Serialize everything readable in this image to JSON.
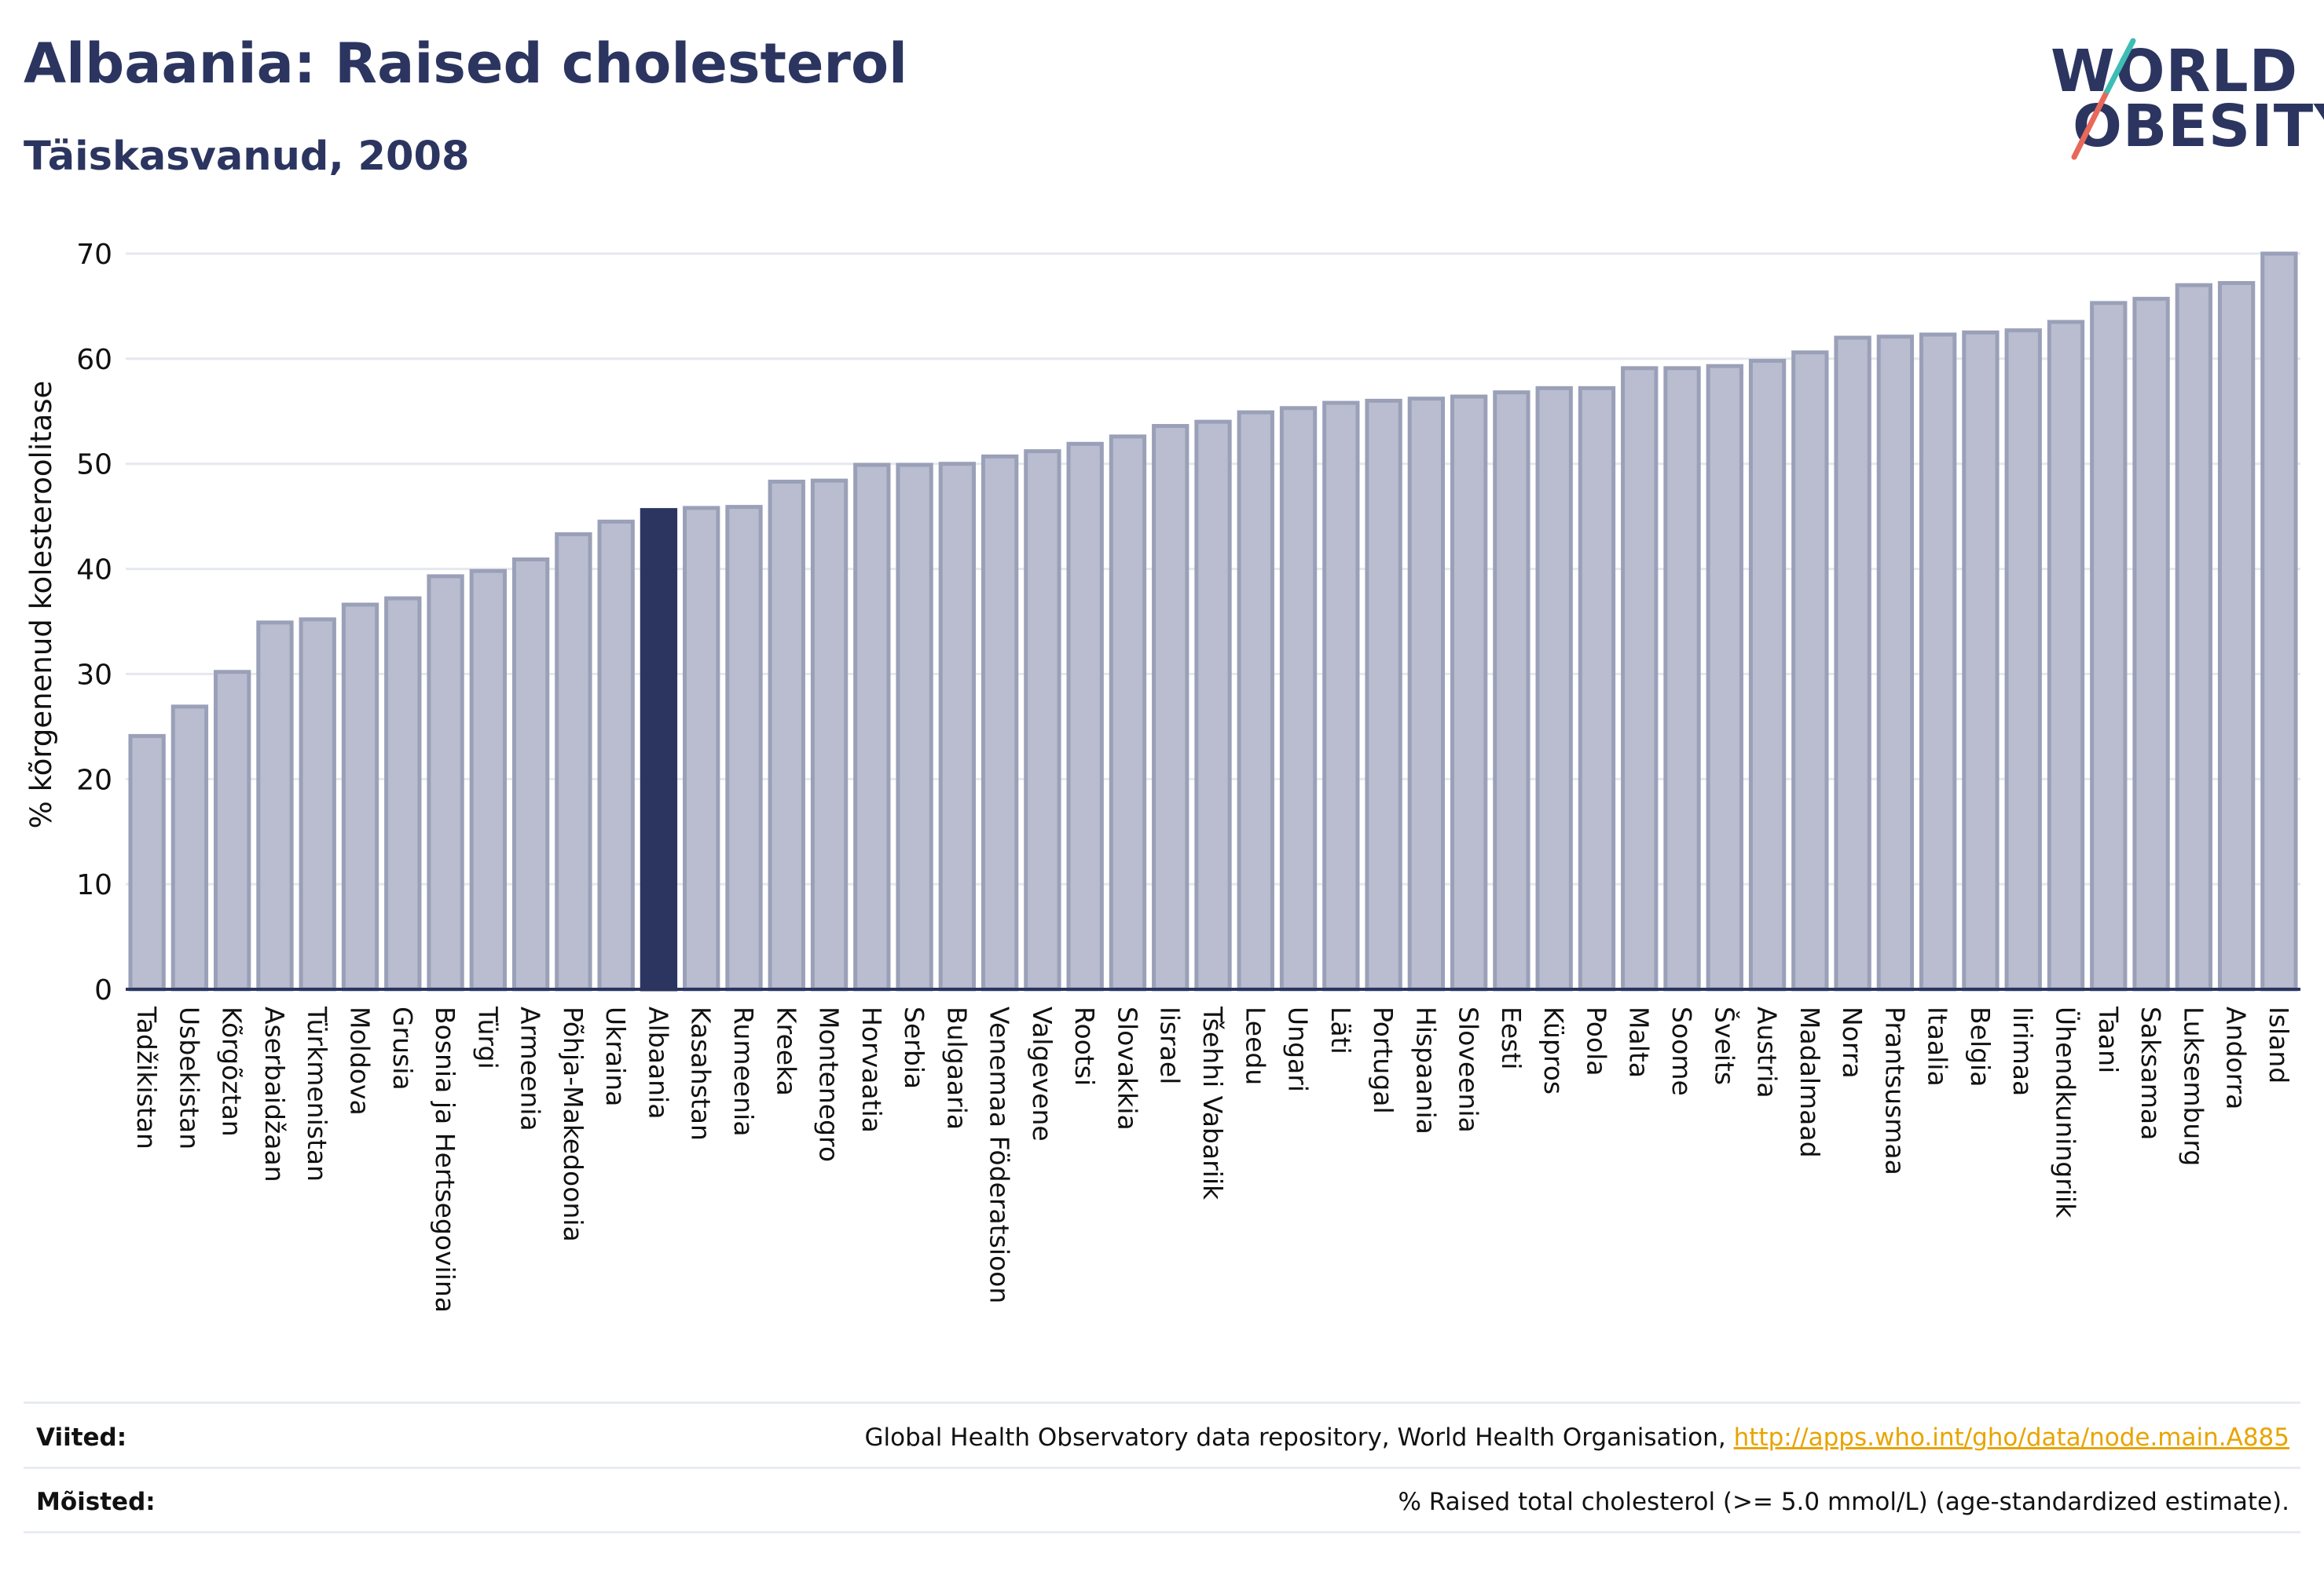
{
  "header": {
    "title": "Albaania: Raised cholesterol",
    "subtitle": "Täiskasvanud, 2008"
  },
  "logo": {
    "line1": "WORLD",
    "line2": "OBESITY"
  },
  "colors": {
    "bar_fill": "#b9bdcf",
    "bar_stroke": "#9aa0b8",
    "highlight": "#2b3560",
    "grid": "#e6e8ef",
    "axis": "#2b3560",
    "logo_slash_teal": "#3dbdb5",
    "logo_slash_red": "#e8685a"
  },
  "chart_data": {
    "type": "bar",
    "ylabel": "% kõrgenenud kolesteroolitase",
    "ylim": [
      0,
      70
    ],
    "yticks": [
      0,
      10,
      20,
      30,
      40,
      50,
      60,
      70
    ],
    "grid": true,
    "highlight": "Albaania",
    "categories": [
      "Tadžikistan",
      "Usbekistan",
      "Kõrgõztan",
      "Aserbaidžaan",
      "Türkmenistan",
      "Moldova",
      "Grusia",
      "Bosnia ja Hertsegoviina",
      "Türgi",
      "Armeenia",
      "Põhja-Makedoonia",
      "Ukraina",
      "Albaania",
      "Kasahstan",
      "Rumeenia",
      "Kreeka",
      "Montenegro",
      "Horvaatia",
      "Serbia",
      "Bulgaaria",
      "Venemaa Föderatsioon",
      "Valgevene",
      "Rootsi",
      "Slovakkia",
      "Iisrael",
      "Tšehhi Vabariik",
      "Leedu",
      "Ungari",
      "Läti",
      "Portugal",
      "Hispaania",
      "Sloveenia",
      "Eesti",
      "Küpros",
      "Poola",
      "Malta",
      "Soome",
      "Šveits",
      "Austria",
      "Madalmaad",
      "Norra",
      "Prantsusmaa",
      "Itaalia",
      "Belgia",
      "Iirimaa",
      "Ühendkuningriik",
      "Taani",
      "Saksamaa",
      "Luksemburg",
      "Andorra",
      "Island"
    ],
    "values": [
      24.1,
      26.9,
      30.2,
      34.9,
      35.2,
      36.6,
      37.2,
      39.3,
      39.8,
      40.9,
      43.3,
      44.5,
      45.6,
      45.8,
      45.9,
      48.3,
      48.4,
      49.9,
      49.9,
      50.0,
      50.7,
      51.2,
      51.9,
      52.6,
      53.6,
      54.0,
      54.9,
      55.3,
      55.8,
      56.0,
      56.2,
      56.4,
      56.8,
      57.2,
      57.2,
      59.1,
      59.1,
      59.3,
      59.8,
      60.6,
      62.0,
      62.1,
      62.3,
      62.5,
      62.7,
      63.5,
      65.3,
      65.7,
      67.0,
      67.2,
      70.0
    ]
  },
  "footer": {
    "sources_label": "Viited:",
    "sources_text": "Global Health Observatory data repository, World Health Organisation, ",
    "sources_link": "http://apps.who.int/gho/data/node.main.A885",
    "definitions_label": "Mõisted:",
    "definitions_text": "% Raised total cholesterol (>= 5.0 mmol/L) (age-standardized estimate)."
  }
}
